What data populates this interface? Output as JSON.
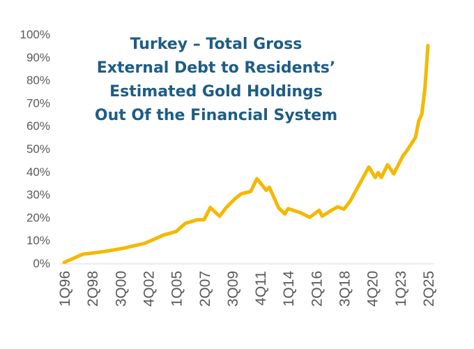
{
  "chart_data": {
    "type": "line",
    "title": [
      "Turkey – Total Gross",
      "External Debt to Residents’",
      "Estimated Gold Holdings",
      "Out Of the Financial System"
    ],
    "xlabel": "",
    "ylabel": "",
    "ylim": [
      0,
      100
    ],
    "y_ticks": [
      "0%",
      "10%",
      "20%",
      "30%",
      "40%",
      "50%",
      "60%",
      "70%",
      "80%",
      "90%",
      "100%"
    ],
    "x_ticks": [
      "1Q96",
      "2Q98",
      "3Q00",
      "4Q02",
      "1Q05",
      "2Q07",
      "3Q09",
      "4Q11",
      "1Q14",
      "2Q16",
      "3Q18",
      "4Q20",
      "1Q23",
      "2Q25"
    ],
    "grid": false,
    "line_color": "#f5b800",
    "title_color": "#1d5d86",
    "series": [
      {
        "x": [
          "1Q96",
          "3Q97",
          "2Q99",
          "4Q00",
          "3Q02",
          "1Q04",
          "1Q05",
          "4Q05",
          "4Q06",
          "2Q07",
          "4Q07",
          "3Q08",
          "1Q09",
          "4Q09",
          "2Q10",
          "1Q11",
          "3Q11",
          "2Q12",
          "3Q12",
          "2Q13",
          "4Q13",
          "1Q14",
          "1Q15",
          "4Q15",
          "3Q16",
          "4Q16",
          "3Q17",
          "1Q18",
          "3Q18",
          "1Q19",
          "3Q19",
          "3Q20",
          "1Q21",
          "2Q21",
          "3Q21",
          "1Q22",
          "3Q22",
          "2Q23",
          "3Q23",
          "2Q24",
          "3Q24",
          "4Q24",
          "1Q25",
          "2Q25"
        ],
        "y": [
          0.3,
          3.9,
          5.1,
          6.5,
          8.7,
          12.3,
          13.8,
          17.4,
          19,
          19,
          24.3,
          20.5,
          24.1,
          28.2,
          30.3,
          31.3,
          36.9,
          31.8,
          33.1,
          24.1,
          21.5,
          23.8,
          22,
          20,
          23.1,
          20.5,
          23.1,
          24.6,
          23.6,
          27.2,
          32.1,
          42,
          37.4,
          39.5,
          37.4,
          43,
          39,
          47,
          48.7,
          55,
          62,
          65,
          76,
          95
        ]
      }
    ]
  }
}
